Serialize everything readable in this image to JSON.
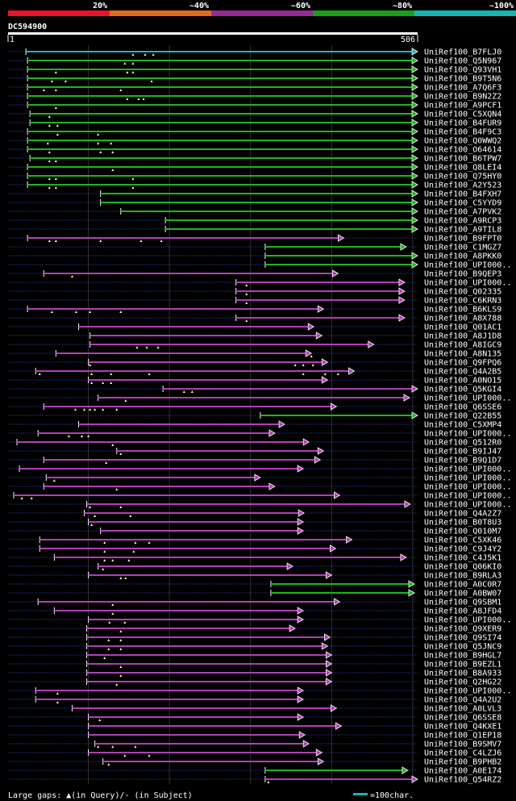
{
  "chart_data": {
    "type": "alignment-overview",
    "title": "DC594900",
    "query_length": 506,
    "axis": {
      "start_label": "1",
      "end_label": "506"
    },
    "identity_scale": {
      "labels": [
        "20%",
        "~40%",
        "~60%",
        "~80%",
        "~100%"
      ],
      "colors": [
        "#e8142c",
        "#e46a1a",
        "#952a96",
        "#18a018",
        "#16b4b4"
      ]
    },
    "legend": {
      "gaps": "Large gaps: ▲(in Query)/- (in Subject)",
      "scale": "=100char.",
      "scale_color": "#16b4b4"
    },
    "hits": [
      {
        "name": "UniRef100_B7FLJ0",
        "start": 23,
        "end": 506,
        "color": "cyan",
        "gaps": [
          155,
          170,
          180
        ]
      },
      {
        "name": "UniRef100_Q5N967",
        "start": 25,
        "end": 506,
        "color": "green",
        "gaps": [
          145,
          155
        ]
      },
      {
        "name": "UniRef100_Q93VH1",
        "start": 25,
        "end": 506,
        "color": "green",
        "gaps": [
          60,
          148,
          155
        ]
      },
      {
        "name": "UniRef100_B9T5N6",
        "start": 25,
        "end": 506,
        "color": "green",
        "gaps": [
          55,
          72,
          178
        ]
      },
      {
        "name": "UniRef100_A7Q6F3",
        "start": 25,
        "end": 506,
        "color": "green",
        "gaps": [
          45,
          60,
          140
        ]
      },
      {
        "name": "UniRef100_B9N2Z2",
        "start": 25,
        "end": 506,
        "color": "green",
        "gaps": [
          148,
          162,
          168
        ]
      },
      {
        "name": "UniRef100_A9PCF1",
        "start": 25,
        "end": 506,
        "color": "green",
        "gaps": [
          60
        ]
      },
      {
        "name": "UniRef100_C5XQN4",
        "start": 28,
        "end": 506,
        "color": "green",
        "gaps": [
          52
        ]
      },
      {
        "name": "UniRef100_B4FUR9",
        "start": 28,
        "end": 506,
        "color": "green",
        "gaps": [
          52,
          62
        ]
      },
      {
        "name": "UniRef100_B4F9C3",
        "start": 25,
        "end": 506,
        "color": "green",
        "gaps": [
          62,
          112
        ]
      },
      {
        "name": "UniRef100_Q0WWQ2",
        "start": 25,
        "end": 506,
        "color": "green",
        "gaps": [
          50,
          112,
          128
        ]
      },
      {
        "name": "UniRef100_O64614",
        "start": 25,
        "end": 506,
        "color": "green",
        "gaps": [
          52,
          115,
          130
        ]
      },
      {
        "name": "UniRef100_B6TPW7",
        "start": 28,
        "end": 506,
        "color": "green",
        "gaps": [
          52,
          60
        ]
      },
      {
        "name": "UniRef100_Q8LEI4",
        "start": 25,
        "end": 506,
        "color": "green",
        "gaps": [
          130
        ]
      },
      {
        "name": "UniRef100_Q75HY0",
        "start": 25,
        "end": 506,
        "color": "green",
        "gaps": [
          52,
          60,
          155
        ]
      },
      {
        "name": "UniRef100_A2Y523",
        "start": 25,
        "end": 506,
        "color": "green",
        "gaps": [
          52,
          60,
          155
        ]
      },
      {
        "name": "UniRef100_B4FXH7",
        "start": 115,
        "end": 506,
        "color": "green",
        "gaps": []
      },
      {
        "name": "UniRef100_C5YYD9",
        "start": 115,
        "end": 506,
        "color": "green",
        "gaps": []
      },
      {
        "name": "UniRef100_A7PVK2",
        "start": 140,
        "end": 506,
        "color": "green",
        "gaps": []
      },
      {
        "name": "UniRef100_A9RCP3",
        "start": 195,
        "end": 506,
        "color": "green",
        "gaps": []
      },
      {
        "name": "UniRef100_A9TIL8",
        "start": 195,
        "end": 506,
        "color": "green",
        "gaps": []
      },
      {
        "name": "UniRef100_B9FPT0",
        "start": 25,
        "end": 415,
        "color": "purple",
        "gaps": [
          52,
          60,
          115,
          165,
          190
        ]
      },
      {
        "name": "UniRef100_C1MGZ7",
        "start": 318,
        "end": 492,
        "color": "green",
        "gaps": []
      },
      {
        "name": "UniRef100_A8PKK0",
        "start": 318,
        "end": 506,
        "color": "green",
        "gaps": []
      },
      {
        "name": "UniRef100_UPI000..",
        "start": 318,
        "end": 506,
        "color": "green",
        "gaps": []
      },
      {
        "name": "UniRef100_B9QEP3",
        "start": 45,
        "end": 408,
        "color": "purple",
        "gaps": [
          80
        ]
      },
      {
        "name": "UniRef100_UPI000..",
        "start": 282,
        "end": 490,
        "color": "purple",
        "gaps": [
          295
        ]
      },
      {
        "name": "UniRef100_Q02335",
        "start": 282,
        "end": 490,
        "color": "purple",
        "gaps": [
          295
        ]
      },
      {
        "name": "UniRef100_C6KRN3",
        "start": 282,
        "end": 490,
        "color": "purple",
        "gaps": [
          295
        ]
      },
      {
        "name": "UniRef100_B6KLS9",
        "start": 25,
        "end": 390,
        "color": "purple",
        "gaps": [
          55,
          85,
          102,
          140
        ]
      },
      {
        "name": "UniRef100_A8X788",
        "start": 282,
        "end": 490,
        "color": "purple",
        "gaps": [
          295
        ]
      },
      {
        "name": "UniRef100_Q01AC1",
        "start": 88,
        "end": 378,
        "color": "purple",
        "gaps": []
      },
      {
        "name": "UniRef100_A8J1D8",
        "start": 102,
        "end": 388,
        "color": "purple",
        "gaps": []
      },
      {
        "name": "UniRef100_A8IGC9",
        "start": 102,
        "end": 452,
        "color": "purple",
        "gaps": [
          160,
          172,
          186
        ]
      },
      {
        "name": "UniRef100_A8N135",
        "start": 60,
        "end": 375,
        "color": "purple",
        "gaps": [
          375
        ]
      },
      {
        "name": "UniRef100_Q9FPQ6",
        "start": 100,
        "end": 395,
        "color": "purple",
        "gaps": [
          102,
          355,
          365,
          377
        ]
      },
      {
        "name": "UniRef100_Q4A2B5",
        "start": 35,
        "end": 428,
        "color": "purple",
        "gaps": [
          40,
          104,
          128,
          175,
          365,
          392,
          408
        ]
      },
      {
        "name": "UniRef100_A0NO15",
        "start": 100,
        "end": 395,
        "color": "purple",
        "gaps": [
          104,
          118,
          128
        ]
      },
      {
        "name": "UniRef100_Q5KGI4",
        "start": 192,
        "end": 506,
        "color": "purple",
        "gaps": [
          218,
          228
        ]
      },
      {
        "name": "UniRef100_UPI000..",
        "start": 112,
        "end": 496,
        "color": "purple",
        "gaps": [
          146
        ]
      },
      {
        "name": "UniRef100_Q6SSE6",
        "start": 45,
        "end": 406,
        "color": "purple",
        "gaps": [
          84,
          95,
          102,
          108,
          118,
          135
        ]
      },
      {
        "name": "UniRef100_Q22B55",
        "start": 312,
        "end": 506,
        "color": "green",
        "gaps": []
      },
      {
        "name": "UniRef100_C5XMP4",
        "start": 88,
        "end": 342,
        "color": "purple",
        "gaps": []
      },
      {
        "name": "UniRef100_UPI000..",
        "start": 38,
        "end": 330,
        "color": "purple",
        "gaps": [
          76,
          92,
          100
        ]
      },
      {
        "name": "UniRef100_Q512R0",
        "start": 12,
        "end": 372,
        "color": "purple",
        "gaps": [
          130
        ]
      },
      {
        "name": "UniRef100_B9IJ47",
        "start": 135,
        "end": 390,
        "color": "purple",
        "gaps": [
          140
        ]
      },
      {
        "name": "UniRef100_B9Q1D7",
        "start": 45,
        "end": 386,
        "color": "purple",
        "gaps": [
          122
        ]
      },
      {
        "name": "UniRef100_UPI000..",
        "start": 15,
        "end": 365,
        "color": "purple",
        "gaps": []
      },
      {
        "name": "UniRef100_UPI000..",
        "start": 48,
        "end": 312,
        "color": "purple",
        "gaps": [
          58
        ]
      },
      {
        "name": "UniRef100_UPI000..",
        "start": 45,
        "end": 330,
        "color": "purple",
        "gaps": [
          135
        ]
      },
      {
        "name": "UniRef100_UPI000..",
        "start": 8,
        "end": 410,
        "color": "purple",
        "gaps": [
          18,
          30
        ]
      },
      {
        "name": "UniRef100_UPI000..",
        "start": 98,
        "end": 497,
        "color": "purple",
        "gaps": [
          102,
          140
        ]
      },
      {
        "name": "UniRef100_Q4A2Z7",
        "start": 95,
        "end": 366,
        "color": "purple",
        "gaps": [
          108,
          152
        ]
      },
      {
        "name": "UniRef100_B0T8U3",
        "start": 100,
        "end": 365,
        "color": "purple",
        "gaps": [
          104
        ]
      },
      {
        "name": "UniRef100_Q010M7",
        "start": 115,
        "end": 365,
        "color": "purple",
        "gaps": []
      },
      {
        "name": "UniRef100_C5XK46",
        "start": 40,
        "end": 425,
        "color": "purple",
        "gaps": [
          120,
          158,
          175
        ]
      },
      {
        "name": "UniRef100_C9J4Y2",
        "start": 40,
        "end": 405,
        "color": "purple",
        "gaps": [
          120,
          156
        ]
      },
      {
        "name": "UniRef100_C4J5K1",
        "start": 58,
        "end": 492,
        "color": "purple",
        "gaps": [
          120,
          130,
          150
        ]
      },
      {
        "name": "UniRef100_Q06KI0",
        "start": 112,
        "end": 352,
        "color": "purple",
        "gaps": [
          118
        ]
      },
      {
        "name": "UniRef100_B9RLA3",
        "start": 100,
        "end": 400,
        "color": "purple",
        "gaps": [
          140,
          146
        ]
      },
      {
        "name": "UniRef100_A0C0R7",
        "start": 325,
        "end": 502,
        "color": "green",
        "gaps": []
      },
      {
        "name": "UniRef100_A0BW07",
        "start": 325,
        "end": 502,
        "color": "green",
        "gaps": []
      },
      {
        "name": "UniRef100_Q9SBM1",
        "start": 38,
        "end": 410,
        "color": "purple",
        "gaps": [
          130
        ]
      },
      {
        "name": "UniRef100_A8JFD4",
        "start": 58,
        "end": 365,
        "color": "purple",
        "gaps": [
          130
        ]
      },
      {
        "name": "UniRef100_UPI000..",
        "start": 100,
        "end": 365,
        "color": "purple",
        "gaps": [
          126,
          145
        ]
      },
      {
        "name": "UniRef100_Q9XER9",
        "start": 98,
        "end": 355,
        "color": "purple",
        "gaps": [
          140
        ]
      },
      {
        "name": "UniRef100_Q9SI74",
        "start": 98,
        "end": 398,
        "color": "purple",
        "gaps": [
          125,
          140
        ]
      },
      {
        "name": "UniRef100_Q5JNC9",
        "start": 98,
        "end": 395,
        "color": "purple",
        "gaps": [
          125,
          140
        ]
      },
      {
        "name": "UniRef100_B9HGL7",
        "start": 98,
        "end": 400,
        "color": "purple",
        "gaps": [
          120
        ]
      },
      {
        "name": "UniRef100_B9EZL1",
        "start": 98,
        "end": 400,
        "color": "purple",
        "gaps": [
          140
        ]
      },
      {
        "name": "UniRef100_B8A933",
        "start": 98,
        "end": 400,
        "color": "purple",
        "gaps": [
          140
        ]
      },
      {
        "name": "UniRef100_Q2HG22",
        "start": 98,
        "end": 400,
        "color": "purple",
        "gaps": [
          135
        ]
      },
      {
        "name": "UniRef100_UPI000..",
        "start": 35,
        "end": 365,
        "color": "purple",
        "gaps": [
          62
        ]
      },
      {
        "name": "UniRef100_Q4A2U2",
        "start": 35,
        "end": 365,
        "color": "purple",
        "gaps": [
          62
        ]
      },
      {
        "name": "UniRef100_A0LVL3",
        "start": 80,
        "end": 406,
        "color": "purple",
        "gaps": []
      },
      {
        "name": "UniRef100_Q6SSE8",
        "start": 100,
        "end": 365,
        "color": "purple",
        "gaps": [
          114
        ]
      },
      {
        "name": "UniRef100_Q4KXE1",
        "start": 100,
        "end": 412,
        "color": "purple",
        "gaps": []
      },
      {
        "name": "UniRef100_Q1EP18",
        "start": 100,
        "end": 367,
        "color": "purple",
        "gaps": []
      },
      {
        "name": "UniRef100_B9SMV7",
        "start": 108,
        "end": 372,
        "color": "purple",
        "gaps": [
          112,
          130,
          158
        ]
      },
      {
        "name": "UniRef100_C4LZJ6",
        "start": 100,
        "end": 388,
        "color": "purple",
        "gaps": [
          145,
          175
        ]
      },
      {
        "name": "UniRef100_B9PHB2",
        "start": 118,
        "end": 390,
        "color": "purple",
        "gaps": [
          125
        ]
      },
      {
        "name": "UniRef100_A0E174",
        "start": 318,
        "end": 494,
        "color": "green",
        "gaps": []
      },
      {
        "name": "UniRef100_Q54RZ2",
        "start": 318,
        "end": 506,
        "color": "purple",
        "gaps": [
          322
        ]
      }
    ]
  }
}
